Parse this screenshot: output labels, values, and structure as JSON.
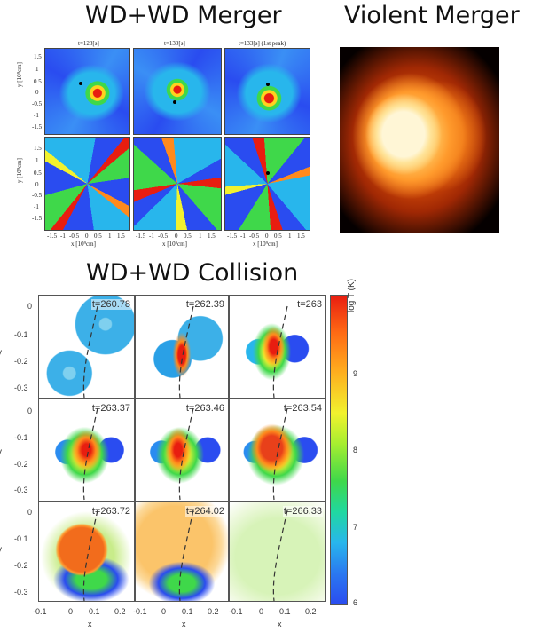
{
  "headings": {
    "merger": "WD+WD Merger",
    "violent": "Violent Merger",
    "collision": "WD+WD Collision"
  },
  "merger_figure": {
    "column_titles": [
      "t=128[s]",
      "t=130[s]",
      "t=133[s] (1st peak)"
    ],
    "ylabel": "y [10⁹cm]",
    "xlabel": "x [10⁹cm]",
    "y_ticks": [
      "1.5",
      "1",
      "0.5",
      "0",
      "-0.5",
      "-1",
      "-1.5"
    ],
    "x_ticks": [
      "-1.5",
      "-1",
      "-0.5",
      "0",
      "0.5",
      "1",
      "1.5"
    ]
  },
  "collision_figure": {
    "time_labels": [
      "t=260.78",
      "t=262.39",
      "t=263",
      "t=263.37",
      "t=263.46",
      "t=263.54",
      "t=263.72",
      "t=264.02",
      "t=266.33"
    ],
    "y_ticks": [
      "0",
      "-0.1",
      "-0.2",
      "-0.3"
    ],
    "x_tick_groups": [
      [
        "-0.1",
        "0",
        "0.1",
        "0.2"
      ],
      [
        "-0.1",
        "0",
        "0.1",
        "0.2"
      ],
      [
        "-0.1",
        "0",
        "0.1",
        "0.2"
      ]
    ],
    "xlabel": "x",
    "ylabel": "y"
  },
  "colorbar": {
    "label": "log T (K)",
    "ticks": [
      "9",
      "8",
      "7",
      "6"
    ],
    "range": [
      6,
      9.9
    ]
  },
  "colors": {
    "blue": "#2a4cf0",
    "cyan": "#28b6ec",
    "green": "#3fd84a",
    "yellow": "#f2f22e",
    "orange": "#ff8a1c",
    "red": "#e81d10"
  }
}
